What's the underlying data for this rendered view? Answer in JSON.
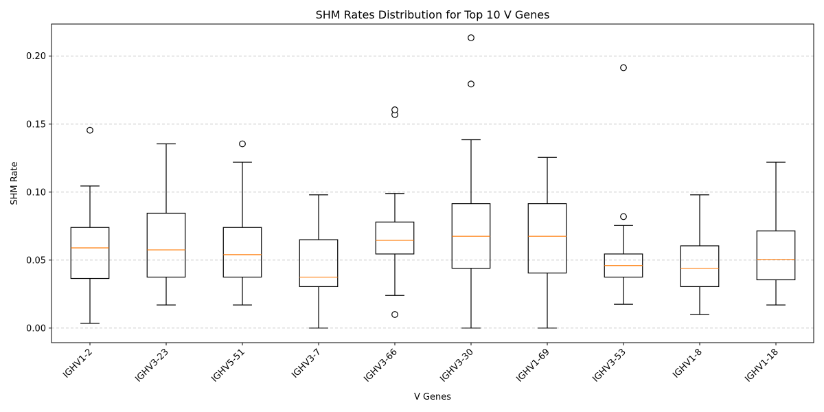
{
  "chart_data": {
    "type": "boxplot",
    "title": "SHM Rates Distribution for Top 10 V Genes",
    "xlabel": "V Genes",
    "ylabel": "SHM Rate",
    "ylim": [
      -0.0107,
      0.2236
    ],
    "yticks": [
      0.0,
      0.05,
      0.1,
      0.15,
      0.2
    ],
    "ytick_labels": [
      "0.00",
      "0.05",
      "0.10",
      "0.15",
      "0.20"
    ],
    "grid": "y-dashed",
    "categories": [
      "IGHV1-2",
      "IGHV3-23",
      "IGHV5-51",
      "IGHV3-7",
      "IGHV3-66",
      "IGHV3-30",
      "IGHV1-69",
      "IGHV3-53",
      "IGHV1-8",
      "IGHV1-18"
    ],
    "boxes": [
      {
        "whisker_low": 0.0035,
        "q1": 0.0365,
        "median": 0.059,
        "q3": 0.074,
        "whisker_high": 0.1045,
        "outliers": [
          0.1455
        ]
      },
      {
        "whisker_low": 0.017,
        "q1": 0.0375,
        "median": 0.0575,
        "q3": 0.0845,
        "whisker_high": 0.1355,
        "outliers": []
      },
      {
        "whisker_low": 0.017,
        "q1": 0.0375,
        "median": 0.054,
        "q3": 0.074,
        "whisker_high": 0.122,
        "outliers": [
          0.1355
        ]
      },
      {
        "whisker_low": 0.0,
        "q1": 0.0305,
        "median": 0.0375,
        "q3": 0.065,
        "whisker_high": 0.098,
        "outliers": []
      },
      {
        "whisker_low": 0.024,
        "q1": 0.0545,
        "median": 0.0645,
        "q3": 0.078,
        "whisker_high": 0.099,
        "outliers": [
          0.01,
          0.157,
          0.1605
        ]
      },
      {
        "whisker_low": 0.0,
        "q1": 0.044,
        "median": 0.0675,
        "q3": 0.0915,
        "whisker_high": 0.1385,
        "outliers": [
          0.1795,
          0.2135
        ]
      },
      {
        "whisker_low": 0.0,
        "q1": 0.0405,
        "median": 0.0675,
        "q3": 0.0915,
        "whisker_high": 0.1255,
        "outliers": []
      },
      {
        "whisker_low": 0.0175,
        "q1": 0.0375,
        "median": 0.046,
        "q3": 0.0545,
        "whisker_high": 0.0755,
        "outliers": [
          0.082,
          0.1915
        ]
      },
      {
        "whisker_low": 0.01,
        "q1": 0.0305,
        "median": 0.044,
        "q3": 0.0605,
        "whisker_high": 0.098,
        "outliers": []
      },
      {
        "whisker_low": 0.017,
        "q1": 0.0355,
        "median": 0.0505,
        "q3": 0.0715,
        "whisker_high": 0.122,
        "outliers": []
      }
    ],
    "colors": {
      "box": "#000000",
      "median": "#ff7f0e",
      "grid": "#c8c8c8",
      "outlier_fill": "#ffffff"
    }
  }
}
